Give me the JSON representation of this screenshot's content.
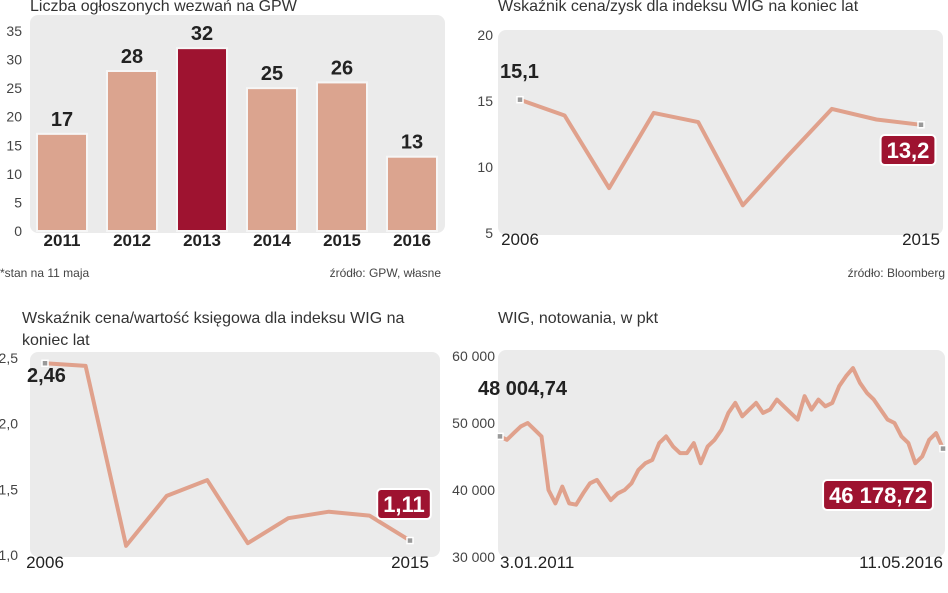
{
  "chart_data": [
    {
      "type": "bar",
      "title": "Liczba ogłoszonych wezwań na GPW",
      "categories": [
        "2011",
        "2012",
        "2013",
        "2014",
        "2015",
        "2016"
      ],
      "values": [
        17,
        28,
        32,
        25,
        26,
        13
      ],
      "colors": [
        "#dba48f",
        "#dba48f",
        "#9e1330",
        "#dba48f",
        "#dba48f",
        "#dba48f"
      ],
      "ylim": [
        0,
        35
      ],
      "yticks": [
        0,
        5,
        10,
        15,
        20,
        25,
        30,
        35
      ],
      "grid": false,
      "note": "*stan na 11 maja",
      "source": "źródło: GPW, własne"
    },
    {
      "type": "line",
      "title": "Wskaźnik cena/zysk dla indeksu WIG na koniec lat",
      "categories": [
        "2006",
        null,
        null,
        null,
        null,
        null,
        null,
        null,
        null,
        "2015"
      ],
      "values": [
        15.1,
        13.9,
        8.4,
        14.1,
        13.4,
        7.1,
        10.8,
        14.4,
        13.6,
        13.2
      ],
      "value_labels": [
        "15,1",
        null,
        null,
        null,
        null,
        null,
        null,
        null,
        null,
        "13,2"
      ],
      "color": "#e0a18c",
      "ylim": [
        5,
        20
      ],
      "yticks": [
        5,
        10,
        15,
        20
      ],
      "grid": false,
      "source": "źródło: Bloomberg"
    },
    {
      "type": "line",
      "title": "Wskaźnik cena/wartość księgowa dla indeksu WIG na koniec lat",
      "categories": [
        "2006",
        null,
        null,
        null,
        null,
        null,
        null,
        null,
        null,
        "2015"
      ],
      "values": [
        2.46,
        2.44,
        1.07,
        1.45,
        1.57,
        1.09,
        1.28,
        1.33,
        1.3,
        1.11
      ],
      "value_labels": [
        "2,46",
        null,
        null,
        null,
        null,
        null,
        null,
        null,
        null,
        "1,11"
      ],
      "color": "#e0a18c",
      "ylim": [
        1.0,
        2.5
      ],
      "yticks": [
        {
          "value": 1.0,
          "label": "1,0"
        },
        {
          "value": 1.5,
          "label": "1,5"
        },
        {
          "value": 2.0,
          "label": "2,0"
        },
        {
          "value": 2.5,
          "label": "2,5"
        }
      ],
      "grid": false
    },
    {
      "type": "line",
      "title": "WIG, notowania, w pkt",
      "categories": [
        "3.01.2011",
        null,
        null,
        null,
        null,
        null,
        null,
        null,
        null,
        null,
        null,
        null,
        null,
        null,
        null,
        null,
        null,
        null,
        null,
        null,
        null,
        null,
        null,
        null,
        null,
        null,
        null,
        null,
        null,
        null,
        null,
        null,
        null,
        null,
        null,
        null,
        null,
        null,
        null,
        null,
        null,
        null,
        null,
        null,
        null,
        null,
        null,
        null,
        null,
        null,
        null,
        null,
        null,
        null,
        null,
        null,
        null,
        null,
        null,
        null,
        null,
        null,
        null,
        null,
        "11.05.2016"
      ],
      "values": [
        48004.74,
        47500,
        48500,
        49500,
        50000,
        49000,
        48000,
        40000,
        38000,
        40500,
        38000,
        37800,
        39500,
        41000,
        41500,
        40000,
        38500,
        39500,
        40000,
        41000,
        43000,
        44000,
        44500,
        47000,
        48000,
        46500,
        45500,
        45500,
        47000,
        44000,
        46500,
        47500,
        49000,
        51500,
        53000,
        51000,
        52000,
        53000,
        51500,
        52000,
        53500,
        52500,
        51500,
        50500,
        54000,
        52000,
        53500,
        52500,
        53000,
        55500,
        57000,
        58200,
        56000,
        54500,
        53500,
        52000,
        50500,
        50000,
        48000,
        47000,
        44000,
        45000,
        47500,
        48500,
        46178.72
      ],
      "value_labels": [
        "48 004,74",
        null,
        null,
        null,
        null,
        null,
        null,
        null,
        null,
        null,
        null,
        null,
        null,
        null,
        null,
        null,
        null,
        null,
        null,
        null,
        null,
        null,
        null,
        null,
        null,
        null,
        null,
        null,
        null,
        null,
        null,
        null,
        null,
        null,
        null,
        null,
        null,
        null,
        null,
        null,
        null,
        null,
        null,
        null,
        null,
        null,
        null,
        null,
        null,
        null,
        null,
        null,
        null,
        null,
        null,
        null,
        null,
        null,
        null,
        null,
        null,
        null,
        null,
        null,
        "46 178,72"
      ],
      "color": "#e0a18c",
      "ylim": [
        30000,
        60000
      ],
      "yticks": [
        {
          "value": 30000,
          "label": "30 000"
        },
        {
          "value": 40000,
          "label": "40 000"
        },
        {
          "value": 50000,
          "label": "50 000"
        },
        {
          "value": 60000,
          "label": "60 000"
        }
      ],
      "grid": false
    }
  ]
}
